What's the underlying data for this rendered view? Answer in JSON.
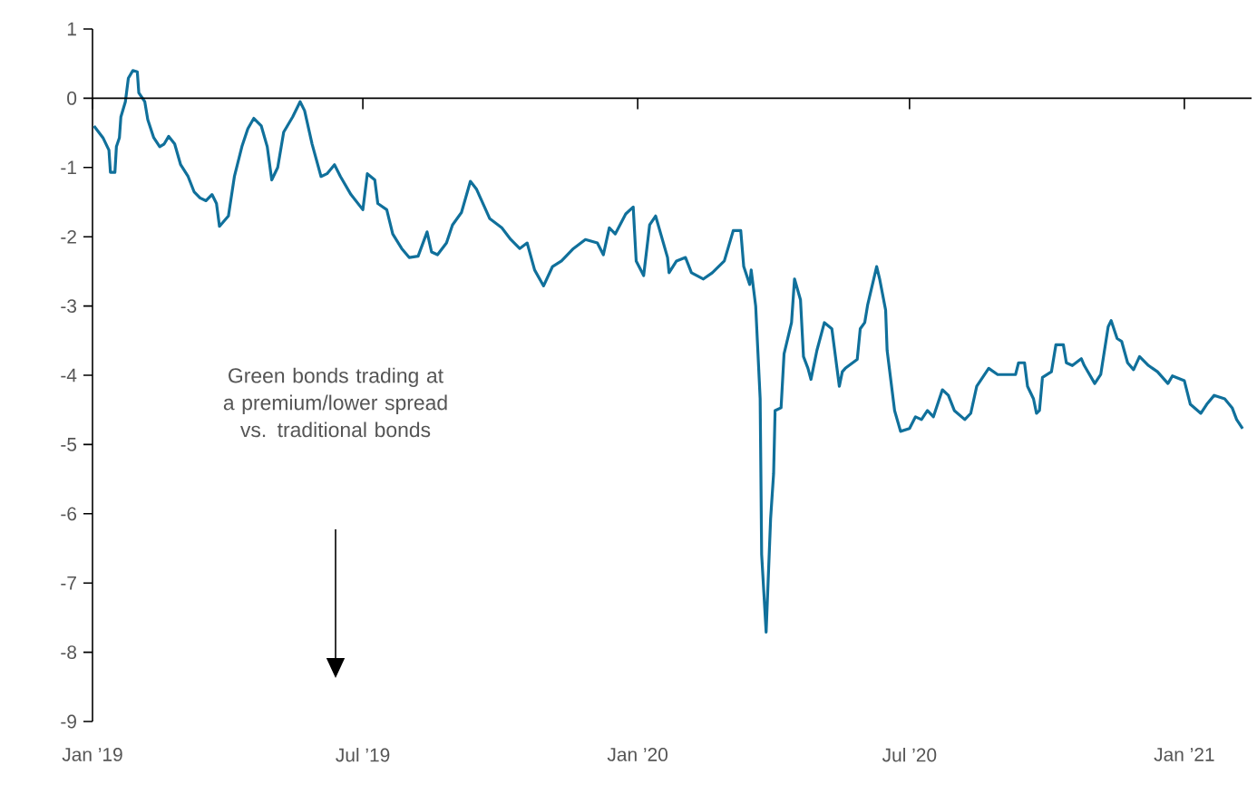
{
  "chart_data": {
    "type": "line",
    "color": "#10709b",
    "x": [
      "2019-01-02",
      "2019-01-08",
      "2019-01-12",
      "2019-01-13",
      "2019-01-16",
      "2019-01-17",
      "2019-01-19",
      "2019-01-20",
      "2019-01-23",
      "2019-01-25",
      "2019-01-28",
      "2019-01-31",
      "2019-02-01",
      "2019-02-05",
      "2019-02-07",
      "2019-02-11",
      "2019-02-15",
      "2019-02-18",
      "2019-02-21",
      "2019-02-25",
      "2019-03-01",
      "2019-03-06",
      "2019-03-10",
      "2019-03-14",
      "2019-03-18",
      "2019-03-22",
      "2019-03-25",
      "2019-03-27",
      "2019-04-02",
      "2019-04-06",
      "2019-04-11",
      "2019-04-15",
      "2019-04-19",
      "2019-04-24",
      "2019-04-28",
      "2019-05-01",
      "2019-05-05",
      "2019-05-09",
      "2019-05-15",
      "2019-05-20",
      "2019-05-23",
      "2019-05-28",
      "2019-06-03",
      "2019-06-07",
      "2019-06-12",
      "2019-06-16",
      "2019-06-23",
      "2019-07-01",
      "2019-07-04",
      "2019-07-09",
      "2019-07-11",
      "2019-07-17",
      "2019-07-21",
      "2019-07-27",
      "2019-08-01",
      "2019-08-07",
      "2019-08-13",
      "2019-08-16",
      "2019-08-20",
      "2019-08-26",
      "2019-08-30",
      "2019-09-05",
      "2019-09-11",
      "2019-09-15",
      "2019-09-24",
      "2019-10-02",
      "2019-10-08",
      "2019-10-14",
      "2019-10-19",
      "2019-10-24",
      "2019-10-30",
      "2019-11-05",
      "2019-11-11",
      "2019-11-19",
      "2019-11-27",
      "2019-12-05",
      "2019-12-09",
      "2019-12-13",
      "2019-12-17",
      "2019-12-24",
      "2019-12-29",
      "2019-12-31",
      "2020-01-05",
      "2020-01-09",
      "2020-01-13",
      "2020-01-21",
      "2020-01-22",
      "2020-01-27",
      "2020-02-02",
      "2020-02-06",
      "2020-02-14",
      "2020-02-20",
      "2020-02-28",
      "2020-03-05",
      "2020-03-10",
      "2020-03-12",
      "2020-03-16",
      "2020-03-17",
      "2020-03-20",
      "2020-03-23",
      "2020-03-24",
      "2020-03-27",
      "2020-03-30",
      "2020-04-01",
      "2020-04-02",
      "2020-04-06",
      "2020-04-08",
      "2020-04-13",
      "2020-04-15",
      "2020-04-19",
      "2020-04-21",
      "2020-04-24",
      "2020-04-26",
      "2020-04-30",
      "2020-05-05",
      "2020-05-10",
      "2020-05-15",
      "2020-05-17",
      "2020-05-19",
      "2020-05-27",
      "2020-05-29",
      "2020-06-01",
      "2020-06-03",
      "2020-06-09",
      "2020-06-11",
      "2020-06-15",
      "2020-06-16",
      "2020-06-21",
      "2020-06-25",
      "2020-07-01",
      "2020-07-05",
      "2020-07-09",
      "2020-07-13",
      "2020-07-17",
      "2020-07-23",
      "2020-07-27",
      "2020-07-31",
      "2020-08-07",
      "2020-08-11",
      "2020-08-15",
      "2020-08-23",
      "2020-08-29",
      "2020-09-10",
      "2020-09-12",
      "2020-09-16",
      "2020-09-18",
      "2020-09-22",
      "2020-09-24",
      "2020-09-26",
      "2020-09-28",
      "2020-10-04",
      "2020-10-07",
      "2020-10-12",
      "2020-10-14",
      "2020-10-18",
      "2020-10-24",
      "2020-10-26",
      "2020-11-02",
      "2020-11-06",
      "2020-11-11",
      "2020-11-13",
      "2020-11-17",
      "2020-11-20",
      "2020-11-24",
      "2020-11-28",
      "2020-12-02",
      "2020-12-08",
      "2020-12-14",
      "2020-12-21",
      "2020-12-24",
      "2021-01-01",
      "2021-01-05",
      "2021-01-12",
      "2021-01-16",
      "2021-01-21",
      "2021-01-28",
      "2021-02-02",
      "2021-02-05",
      "2021-02-09"
    ],
    "values": [
      -0.4,
      -0.57,
      -0.75,
      -1.07,
      -1.07,
      -0.7,
      -0.57,
      -0.27,
      -0.05,
      0.29,
      0.4,
      0.38,
      0.08,
      -0.05,
      -0.31,
      -0.57,
      -0.7,
      -0.66,
      -0.55,
      -0.66,
      -0.96,
      -1.13,
      -1.35,
      -1.44,
      -1.48,
      -1.39,
      -1.52,
      -1.85,
      -1.7,
      -1.13,
      -0.7,
      -0.44,
      -0.29,
      -0.4,
      -0.7,
      -1.18,
      -1.0,
      -0.49,
      -0.27,
      -0.05,
      -0.18,
      -0.66,
      -1.13,
      -1.09,
      -0.96,
      -1.13,
      -1.39,
      -1.61,
      -1.09,
      -1.18,
      -1.52,
      -1.61,
      -1.96,
      -2.17,
      -2.3,
      -2.28,
      -1.93,
      -2.22,
      -2.26,
      -2.09,
      -1.83,
      -1.65,
      -1.2,
      -1.31,
      -1.74,
      -1.87,
      -2.04,
      -2.17,
      -2.09,
      -2.48,
      -2.71,
      -2.43,
      -2.35,
      -2.17,
      -2.04,
      -2.09,
      -2.26,
      -1.87,
      -1.96,
      -1.67,
      -1.57,
      -2.35,
      -2.56,
      -1.83,
      -1.7,
      -2.3,
      -2.52,
      -2.35,
      -2.3,
      -2.52,
      -2.61,
      -2.52,
      -2.35,
      -1.91,
      -1.91,
      -2.43,
      -2.69,
      -2.48,
      -3.0,
      -4.34,
      -6.59,
      -7.71,
      -6.07,
      -5.42,
      -4.51,
      -4.47,
      -3.69,
      -3.24,
      -2.61,
      -2.91,
      -3.73,
      -3.9,
      -4.06,
      -3.64,
      -3.24,
      -3.33,
      -4.16,
      -3.95,
      -3.9,
      -3.77,
      -3.33,
      -3.24,
      -2.98,
      -2.43,
      -2.61,
      -3.06,
      -3.64,
      -4.51,
      -4.81,
      -4.77,
      -4.6,
      -4.64,
      -4.51,
      -4.6,
      -4.21,
      -4.29,
      -4.51,
      -4.64,
      -4.55,
      -4.16,
      -3.9,
      -3.99,
      -3.99,
      -3.82,
      -3.82,
      -4.16,
      -4.34,
      -4.55,
      -4.51,
      -4.03,
      -3.95,
      -3.56,
      -3.56,
      -3.82,
      -3.86,
      -3.76,
      -3.86,
      -4.12,
      -3.99,
      -3.3,
      -3.21,
      -3.47,
      -3.51,
      -3.82,
      -3.92,
      -3.73,
      -3.86,
      -3.95,
      -4.12,
      -4.01,
      -4.08,
      -4.42,
      -4.55,
      -4.42,
      -4.29,
      -4.34,
      -4.47,
      -4.64,
      -4.77
    ],
    "xlim": [
      "2019-01-01",
      "2021-02-15"
    ],
    "xticks": [
      {
        "value": "2019-01-01",
        "label": "Jan ’19"
      },
      {
        "value": "2019-07-01",
        "label": "Jul ’19"
      },
      {
        "value": "2020-01-01",
        "label": "Jan ’20"
      },
      {
        "value": "2020-07-01",
        "label": "Jul ’20"
      },
      {
        "value": "2021-01-01",
        "label": "Jan ’21"
      }
    ],
    "ylim": [
      -9,
      1
    ],
    "yticks": [
      1,
      0,
      -1,
      -2,
      -3,
      -4,
      -5,
      -6,
      -7,
      -8,
      -9
    ],
    "annotations": [
      "Green bonds trading at a premium/lower spread vs. traditional bonds"
    ]
  }
}
